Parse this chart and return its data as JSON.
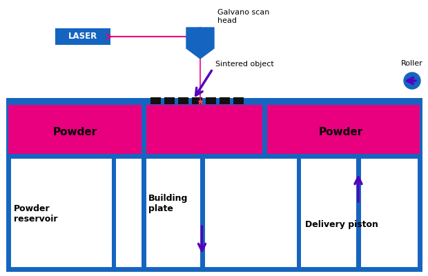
{
  "fig_width": 6.2,
  "fig_height": 4.0,
  "dpi": 100,
  "bg_color": "#ffffff",
  "blue": "#1565C0",
  "magenta": "#E8007F",
  "purple": "#5500BB",
  "laser_text": "LASER",
  "galvano_text": "Galvano scan\nhead",
  "sintered_text": "Sintered object",
  "roller_text": "Roller",
  "powder_left_text": "Powder",
  "powder_right_text": "Powder",
  "building_plate_text": "Building\nplate",
  "powder_reservoir_text": "Powder\nreservoir",
  "delivery_piston_text": "Delivery piston",
  "xlim": [
    0,
    620
  ],
  "ylim": [
    0,
    400
  ]
}
